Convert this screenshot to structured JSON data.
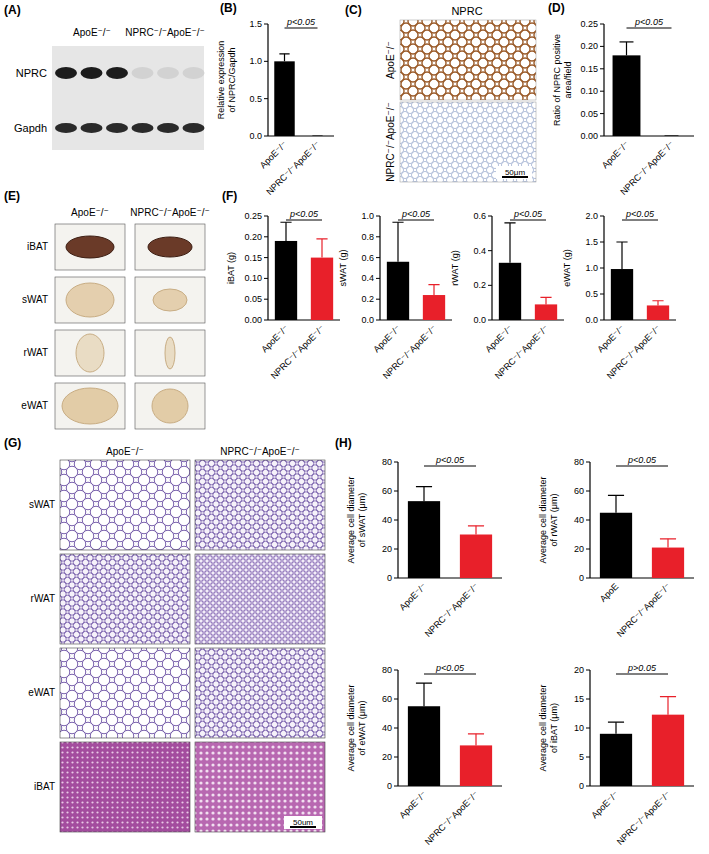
{
  "panel_labels": [
    "(A)",
    "(B)",
    "(C)",
    "(D)",
    "(E)",
    "(F)",
    "(G)",
    "(H)"
  ],
  "blot": {
    "groups": [
      "ApoE⁻/⁻",
      "NPRC⁻/⁻ApoE⁻/⁻"
    ],
    "rows": [
      "NPRC",
      "Gapdh"
    ]
  },
  "ihc": {
    "title": "NPRC",
    "rows": [
      "ApoE⁻/⁻",
      "NPRC⁻/⁻ApoE⁻/⁻"
    ],
    "scale_bar": "50μm"
  },
  "photos": {
    "columns": [
      "ApoE⁻/⁻",
      "NPRC⁻/⁻ApoE⁻/⁻"
    ],
    "rows": [
      "iBAT",
      "sWAT",
      "rWAT",
      "eWAT"
    ]
  },
  "histology": {
    "columns": [
      "ApoE⁻/⁻",
      "NPRC⁻/⁻ApoE⁻/⁻"
    ],
    "rows": [
      "sWAT",
      "rWAT",
      "eWAT",
      "iBAT"
    ],
    "scale_bar": "50um"
  },
  "chart_data": [
    {
      "type": "bar",
      "y_label": "Relative expression of NPRC/Gapdh",
      "categories": [
        "ApoE⁻/⁻",
        "NPRC⁻/⁻ApoE⁻/⁻"
      ],
      "values": [
        1.0,
        0.0
      ],
      "errors": [
        0.1,
        0.0
      ],
      "colors": [
        "#000000",
        "#000000"
      ],
      "ylim": [
        0,
        1.5
      ],
      "yticks": [
        {
          "value": 0,
          "label": "0.0"
        },
        0.5,
        {
          "value": 1,
          "label": "1.0"
        },
        1.5
      ],
      "annotation": "p<0.05"
    },
    {
      "type": "bar",
      "y_label": "Ratio of NPRC positive area/field",
      "categories": [
        "ApoE⁻/⁻",
        "NPRC⁻/⁻ApoE⁻/⁻"
      ],
      "values": [
        0.18,
        0.0
      ],
      "errors": [
        0.03,
        0.0
      ],
      "colors": [
        "#000000",
        "#000000"
      ],
      "ylim": [
        0,
        0.25
      ],
      "yticks": [
        {
          "value": 0,
          "label": "0.00"
        },
        {
          "value": 0.05,
          "label": "0.05"
        },
        {
          "value": 0.1,
          "label": "0.10"
        },
        {
          "value": 0.15,
          "label": "0.15"
        },
        {
          "value": 0.2,
          "label": "0.20"
        },
        {
          "value": 0.25,
          "label": "0.25"
        }
      ],
      "annotation": "p<0.05"
    },
    {
      "type": "bar",
      "y_label": "iBAT (g)",
      "categories": [
        "ApoE⁻/⁻",
        "NPRC⁻/⁻ApoE⁻/⁻"
      ],
      "values": [
        0.19,
        0.15
      ],
      "errors": [
        0.045,
        0.045
      ],
      "colors": [
        "#000000",
        "#e8202a"
      ],
      "ylim": [
        0,
        0.25
      ],
      "yticks": [
        {
          "value": 0,
          "label": "0.00"
        },
        {
          "value": 0.05,
          "label": "0.05"
        },
        {
          "value": 0.1,
          "label": "0.10"
        },
        {
          "value": 0.15,
          "label": "0.15"
        },
        {
          "value": 0.2,
          "label": "0.20"
        },
        {
          "value": 0.25,
          "label": "0.25"
        }
      ],
      "annotation": "p<0.05"
    },
    {
      "type": "bar",
      "y_label": "sWAT (g)",
      "categories": [
        "ApoE⁻/⁻",
        "NPRC⁻/⁻ApoE⁻/⁻"
      ],
      "values": [
        0.56,
        0.24
      ],
      "errors": [
        0.38,
        0.1
      ],
      "colors": [
        "#000000",
        "#e8202a"
      ],
      "ylim": [
        0,
        1.0
      ],
      "yticks": [
        {
          "value": 0,
          "label": "0.0"
        },
        0.2,
        0.4,
        0.6,
        0.8,
        {
          "value": 1,
          "label": "1.0"
        }
      ],
      "annotation": "p<0.05"
    },
    {
      "type": "bar",
      "y_label": "rWAT (g)",
      "categories": [
        "ApoE⁻/⁻",
        "NPRC⁻/⁻ApoE⁻/⁻"
      ],
      "values": [
        0.33,
        0.09
      ],
      "errors": [
        0.23,
        0.04
      ],
      "colors": [
        "#000000",
        "#e8202a"
      ],
      "ylim": [
        0,
        0.6
      ],
      "yticks": [
        {
          "value": 0,
          "label": "0.0"
        },
        0.2,
        0.4,
        0.6
      ],
      "annotation": "p<0.05"
    },
    {
      "type": "bar",
      "y_label": "eWAT (g)",
      "categories": [
        "ApoE⁻/⁻",
        "NPRC⁻/⁻ApoE⁻/⁻"
      ],
      "values": [
        0.98,
        0.28
      ],
      "errors": [
        0.52,
        0.09
      ],
      "colors": [
        "#000000",
        "#e8202a"
      ],
      "ylim": [
        0,
        2.0
      ],
      "yticks": [
        {
          "value": 0,
          "label": "0.0"
        },
        0.5,
        {
          "value": 1,
          "label": "1.0"
        },
        1.5,
        {
          "value": 2,
          "label": "2.0"
        }
      ],
      "annotation": "p<0.05"
    },
    {
      "type": "bar",
      "y_label": "Average cell diameter of sWAT (μm)",
      "categories": [
        "ApoE⁻/⁻",
        "NPRC⁻/⁻ApoE⁻/⁻"
      ],
      "values": [
        53,
        30
      ],
      "errors": [
        10,
        6
      ],
      "colors": [
        "#000000",
        "#e8202a"
      ],
      "ylim": [
        0,
        80
      ],
      "yticks": [
        0,
        20,
        40,
        60,
        80
      ],
      "annotation": "p<0.05"
    },
    {
      "type": "bar",
      "y_label": "Average cell diameter of rWAT (μm)",
      "categories": [
        "ApoE",
        "NPRC⁻/⁻ApoE⁻/⁻"
      ],
      "values": [
        45,
        21
      ],
      "errors": [
        12,
        6
      ],
      "colors": [
        "#000000",
        "#e8202a"
      ],
      "ylim": [
        0,
        80
      ],
      "yticks": [
        0,
        20,
        40,
        60,
        80
      ],
      "annotation": "p<0.05"
    },
    {
      "type": "bar",
      "y_label": "Average cell diameter of eWAT (μm)",
      "categories": [
        "ApoE⁻/⁻",
        "NPRC⁻/⁻ApoE⁻/⁻"
      ],
      "values": [
        55,
        28
      ],
      "errors": [
        16,
        8
      ],
      "colors": [
        "#000000",
        "#e8202a"
      ],
      "ylim": [
        0,
        80
      ],
      "yticks": [
        0,
        20,
        40,
        60,
        80
      ],
      "annotation": "p<0.05"
    },
    {
      "type": "bar",
      "y_label": "Average cell diameter of iBAT (μm)",
      "categories": [
        "ApoE⁻/⁻",
        "NPRC⁻/⁻ApoE⁻/⁻"
      ],
      "values": [
        9,
        12.3
      ],
      "errors": [
        2,
        3.1
      ],
      "colors": [
        "#000000",
        "#e8202a"
      ],
      "ylim": [
        0,
        20
      ],
      "yticks": [
        0,
        5,
        10,
        15,
        20
      ],
      "annotation": "p>0.05"
    }
  ]
}
